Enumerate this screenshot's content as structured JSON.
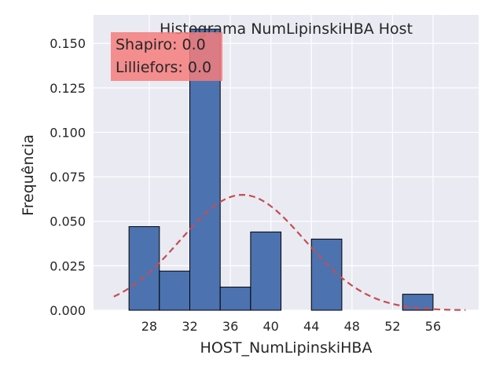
{
  "chart_data": {
    "type": "bar",
    "title": "Histograma NumLipinskiHBA Host",
    "xlabel": "HOST_NumLipinskiHBA",
    "ylabel": "Frequência",
    "bins": [
      {
        "start": 26.0,
        "end": 29.0,
        "value": 0.047
      },
      {
        "start": 29.0,
        "end": 32.0,
        "value": 0.022
      },
      {
        "start": 32.0,
        "end": 35.0,
        "value": 0.158
      },
      {
        "start": 35.0,
        "end": 38.0,
        "value": 0.013
      },
      {
        "start": 38.0,
        "end": 41.0,
        "value": 0.044
      },
      {
        "start": 41.0,
        "end": 44.0,
        "value": 0.0
      },
      {
        "start": 44.0,
        "end": 47.0,
        "value": 0.04
      },
      {
        "start": 47.0,
        "end": 50.0,
        "value": 0.0
      },
      {
        "start": 50.0,
        "end": 53.0,
        "value": 0.0
      },
      {
        "start": 53.0,
        "end": 56.0,
        "value": 0.009
      }
    ],
    "normal_fit": {
      "mean": 37.2,
      "std": 6.15,
      "style": "dashed",
      "color": "#c44e52"
    },
    "xlim": [
      22.5,
      60.5
    ],
    "ylim": [
      0.0,
      0.166
    ],
    "xticks": [
      28,
      32,
      36,
      40,
      44,
      48,
      52,
      56
    ],
    "yticks": [
      "0.000",
      "0.025",
      "0.050",
      "0.075",
      "0.100",
      "0.125",
      "0.150"
    ],
    "grid": true,
    "annotation": {
      "lines": [
        "Shapiro: 0.0",
        "Lilliefors: 0.0"
      ],
      "background": "#f47c7c",
      "placement": "top-left"
    },
    "colors": {
      "bar_fill": "#4c72b0",
      "bar_edge": "#000000",
      "plot_background": "#eaeaf2",
      "grid": "#ffffff"
    }
  }
}
